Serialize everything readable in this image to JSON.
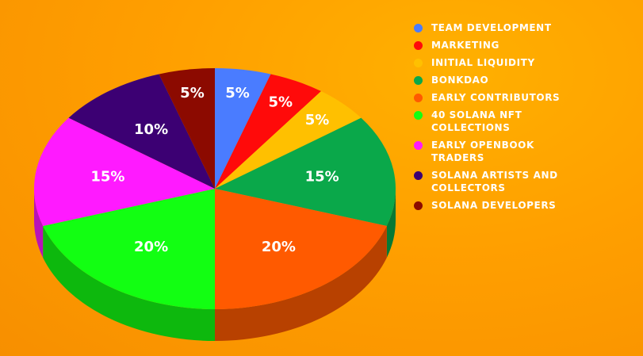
{
  "chart_data": {
    "type": "pie",
    "title": "",
    "unit": "%",
    "slices": [
      {
        "name": "TEAM DEVELOPMENT",
        "value": 5,
        "label": "5%",
        "color": "#4a7cff"
      },
      {
        "name": "MARKETING",
        "value": 5,
        "label": "5%",
        "color": "#ff0a0a"
      },
      {
        "name": "INITIAL LIQUIDITY",
        "value": 5,
        "label": "5%",
        "color": "#ffc000"
      },
      {
        "name": "BONKDAO",
        "value": 15,
        "label": "15%",
        "color": "#0aa84a"
      },
      {
        "name": "EARLY CONTRIBUTORS",
        "value": 20,
        "label": "20%",
        "color": "#ff5a00"
      },
      {
        "name": "40 SOLANA NFT COLLECTIONS",
        "value": 20,
        "label": "20%",
        "color": "#12ff12"
      },
      {
        "name": "EARLY OPENBOOK TRADERS",
        "value": 15,
        "label": "15%",
        "color": "#ff1aff"
      },
      {
        "name": "SOLANA ARTISTS AND COLLECTORS",
        "value": 10,
        "label": "10%",
        "color": "#3c0073"
      },
      {
        "name": "SOLANA DEVELOPERS",
        "value": 5,
        "label": "5%",
        "color": "#8c0a00"
      }
    ],
    "legend_position": "right"
  }
}
